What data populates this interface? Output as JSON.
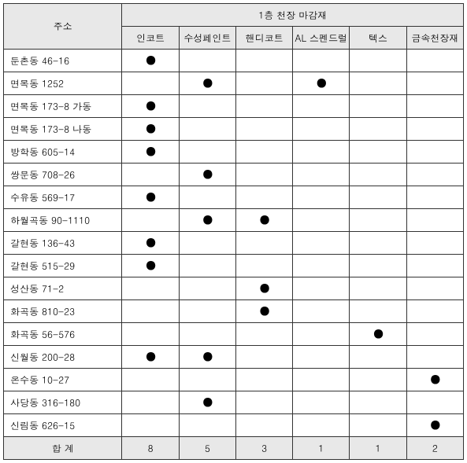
{
  "header": {
    "addr": "주소",
    "group": "1층 천장 마감재",
    "cols": [
      "인코트",
      "수성페인트",
      "핸디코트",
      "AL 스펜드럴",
      "텍스",
      "금속천장재"
    ]
  },
  "dot": "●",
  "rows": [
    {
      "addr": "둔촌동 46-16",
      "marks": [
        true,
        false,
        false,
        false,
        false,
        false
      ]
    },
    {
      "addr": "면목동 1252",
      "marks": [
        false,
        true,
        false,
        true,
        false,
        false
      ]
    },
    {
      "addr": "면목동 173-8 가동",
      "marks": [
        true,
        false,
        false,
        false,
        false,
        false
      ]
    },
    {
      "addr": "면목동 173-8 나동",
      "marks": [
        true,
        false,
        false,
        false,
        false,
        false
      ]
    },
    {
      "addr": "방학동 605-14",
      "marks": [
        true,
        false,
        false,
        false,
        false,
        false
      ]
    },
    {
      "addr": "쌍문동 708-26",
      "marks": [
        false,
        true,
        false,
        false,
        false,
        false
      ]
    },
    {
      "addr": "수유동 569-17",
      "marks": [
        true,
        false,
        false,
        false,
        false,
        false
      ]
    },
    {
      "addr": "하월곡동 90-1110",
      "marks": [
        false,
        true,
        true,
        false,
        false,
        false
      ]
    },
    {
      "addr": "갈현동 136-43",
      "marks": [
        true,
        false,
        false,
        false,
        false,
        false
      ]
    },
    {
      "addr": "갈현동 515-29",
      "marks": [
        true,
        false,
        false,
        false,
        false,
        false
      ]
    },
    {
      "addr": "성산동 71-2",
      "marks": [
        false,
        false,
        true,
        false,
        false,
        false
      ]
    },
    {
      "addr": "화곡동 810-23",
      "marks": [
        false,
        false,
        true,
        false,
        false,
        false
      ]
    },
    {
      "addr": "화곡동 56-576",
      "marks": [
        false,
        false,
        false,
        false,
        true,
        false
      ]
    },
    {
      "addr": "신월동 200-28",
      "marks": [
        true,
        true,
        false,
        false,
        false,
        false
      ]
    },
    {
      "addr": "온수동 10-27",
      "marks": [
        false,
        false,
        false,
        false,
        false,
        true
      ]
    },
    {
      "addr": "사당동 316-180",
      "marks": [
        false,
        true,
        false,
        false,
        false,
        false
      ]
    },
    {
      "addr": "신림동 626-15",
      "marks": [
        false,
        false,
        false,
        false,
        false,
        true
      ]
    }
  ],
  "total": {
    "label": "합    계",
    "values": [
      "8",
      "5",
      "3",
      "1",
      "1",
      "2"
    ]
  }
}
